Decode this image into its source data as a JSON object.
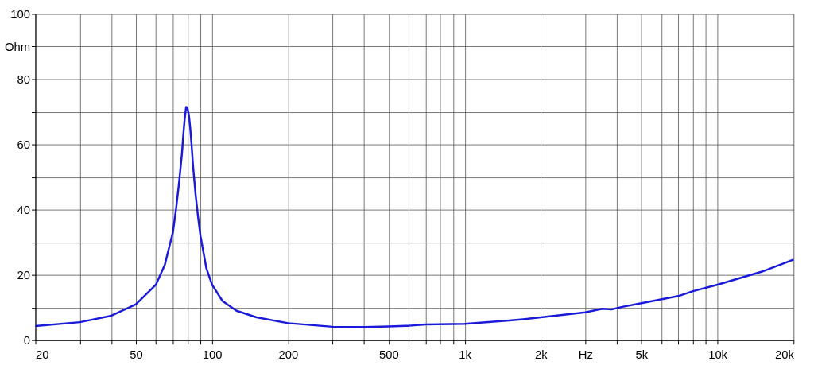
{
  "chart_data": {
    "type": "line",
    "log": "x",
    "grid": true,
    "marker": "none",
    "line_style": "solid",
    "xlim": [
      20,
      20000
    ],
    "ylim": [
      0,
      100
    ],
    "xticks": [
      20,
      {
        "value": 30,
        "label": null
      },
      {
        "value": 40,
        "label": null
      },
      50,
      {
        "value": 60,
        "label": null
      },
      {
        "value": 70,
        "label": null
      },
      {
        "value": 80,
        "label": null
      },
      {
        "value": 90,
        "label": null
      },
      100,
      200,
      {
        "value": 300,
        "label": null
      },
      {
        "value": 400,
        "label": null
      },
      500,
      {
        "value": 600,
        "label": null
      },
      {
        "value": 700,
        "label": null
      },
      {
        "value": 800,
        "label": null
      },
      {
        "value": 900,
        "label": null
      },
      {
        "value": 1000,
        "label": "1k"
      },
      {
        "value": 2000,
        "label": "2k"
      },
      {
        "value": 3000,
        "label": "Hz"
      },
      {
        "value": 4000,
        "label": null
      },
      {
        "value": 5000,
        "label": "5k"
      },
      {
        "value": 6000,
        "label": null
      },
      {
        "value": 7000,
        "label": null
      },
      {
        "value": 8000,
        "label": null
      },
      {
        "value": 9000,
        "label": null
      },
      {
        "value": 10000,
        "label": "10k"
      },
      {
        "value": 20000,
        "label": "20k"
      }
    ],
    "yticks": [
      0,
      {
        "value": 10,
        "label": null
      },
      20,
      {
        "value": 30,
        "label": null
      },
      40,
      {
        "value": 50,
        "label": null
      },
      60,
      {
        "value": 70,
        "label": null
      },
      80,
      {
        "value": 90,
        "label": "Ohm"
      },
      100
    ],
    "x": [
      20,
      30,
      40,
      50,
      60,
      65,
      70,
      72,
      74,
      76,
      77,
      78,
      79,
      80,
      81,
      82,
      83,
      84,
      86,
      88,
      90,
      95,
      100,
      110,
      125,
      150,
      200,
      300,
      400,
      500,
      600,
      700,
      1000,
      1500,
      1700,
      2000,
      3000,
      3500,
      3800,
      4200,
      5000,
      7000,
      8000,
      10000,
      15000,
      20000
    ],
    "series": [
      {
        "color": "#1a1adc",
        "values": [
          4.3,
          5.5,
          7.5,
          11,
          17,
          23,
          33,
          40,
          48,
          57,
          63,
          68,
          71.5,
          71,
          69,
          65,
          60,
          54,
          45,
          38,
          32,
          22,
          17,
          12,
          9,
          7,
          5.2,
          4.1,
          4.0,
          4.2,
          4.4,
          4.8,
          5.0,
          6.0,
          6.4,
          7.0,
          8.5,
          9.6,
          9.4,
          10.2,
          11.3,
          13.5,
          15,
          17,
          21,
          24.7
        ]
      }
    ]
  }
}
